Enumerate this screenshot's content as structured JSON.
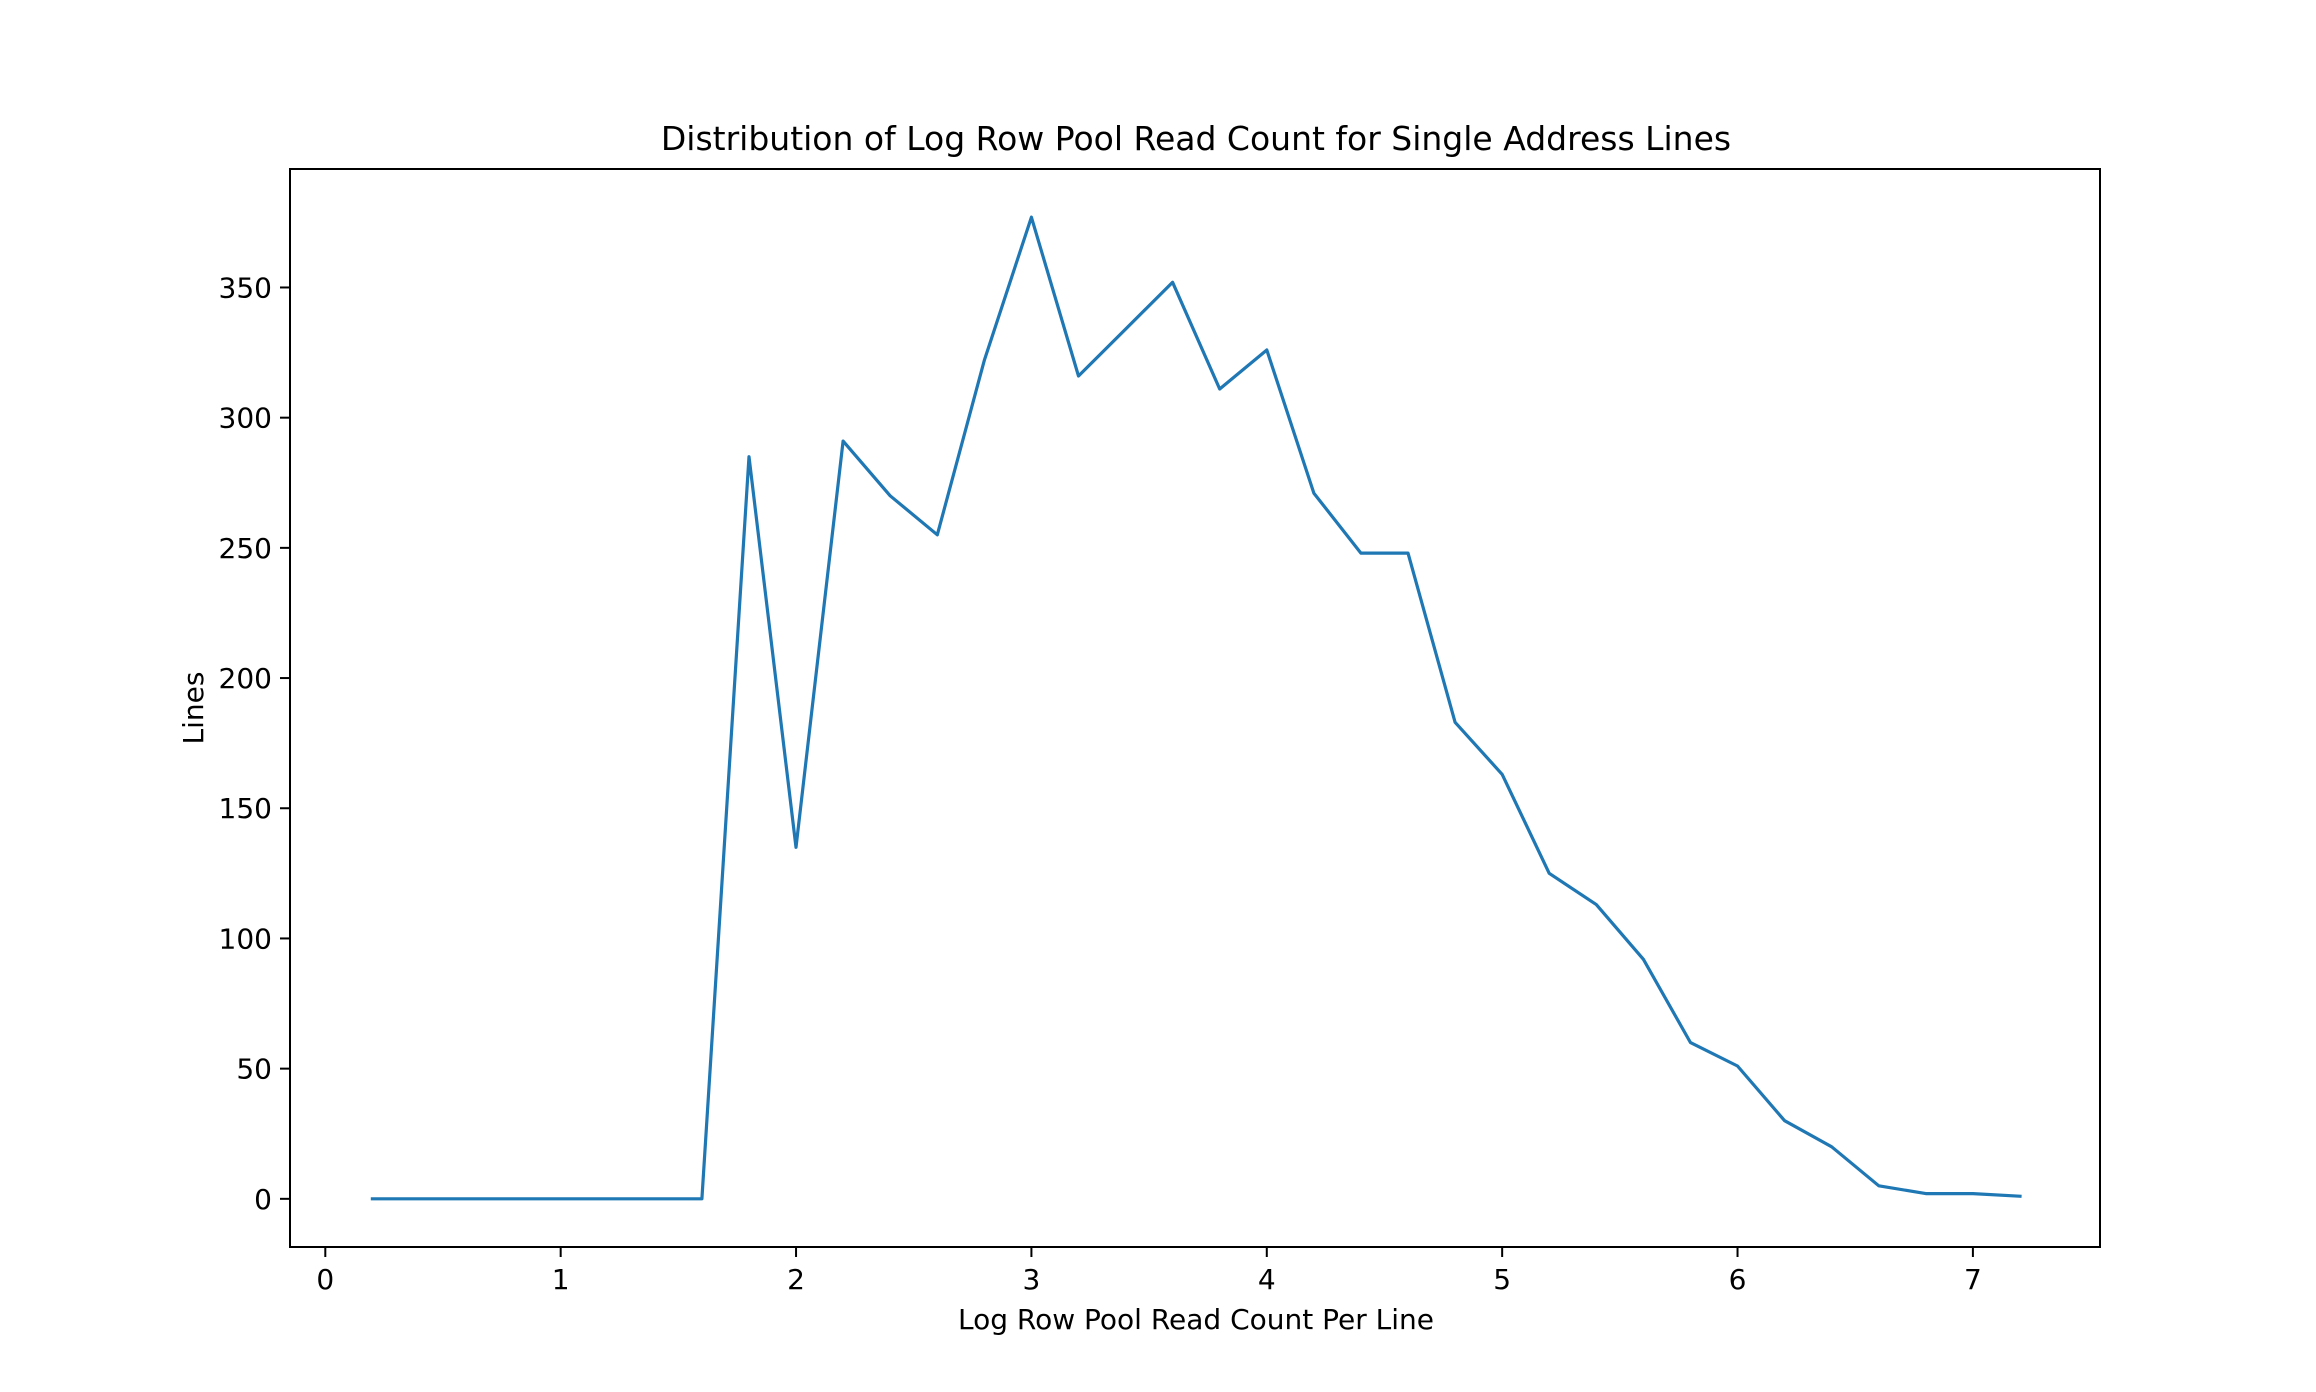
{
  "chart_data": {
    "type": "line",
    "title": "Distribution of Log Row Pool Read Count for Single Address Lines",
    "xlabel": "Log Row Pool Read Count Per Line",
    "ylabel": "Lines",
    "xlim": [
      -0.15,
      7.54
    ],
    "ylim": [
      -18.5,
      395.5
    ],
    "x_ticks": [
      0,
      1,
      2,
      3,
      4,
      5,
      6,
      7
    ],
    "y_ticks": [
      0,
      50,
      100,
      150,
      200,
      250,
      300,
      350
    ],
    "grid": false,
    "legend": "none",
    "series": [
      {
        "color": "#1f77b4",
        "x": [
          0.2,
          0.4,
          0.6,
          0.8,
          1.0,
          1.2,
          1.4,
          1.6,
          1.8,
          2.0,
          2.2,
          2.4,
          2.6,
          2.8,
          3.0,
          3.2,
          3.4,
          3.6,
          3.8,
          4.0,
          4.2,
          4.4,
          4.6,
          4.8,
          5.0,
          5.2,
          5.4,
          5.6,
          5.8,
          6.0,
          6.2,
          6.4,
          6.6,
          6.8,
          7.0,
          7.2
        ],
        "y": [
          0,
          0,
          0,
          0,
          0,
          0,
          0,
          0,
          285,
          135,
          291,
          270,
          255,
          322,
          377,
          316,
          334,
          352,
          311,
          326,
          271,
          248,
          248,
          183,
          163,
          125,
          113,
          92,
          60,
          51,
          30,
          20,
          5,
          2,
          2,
          1
        ]
      }
    ]
  }
}
